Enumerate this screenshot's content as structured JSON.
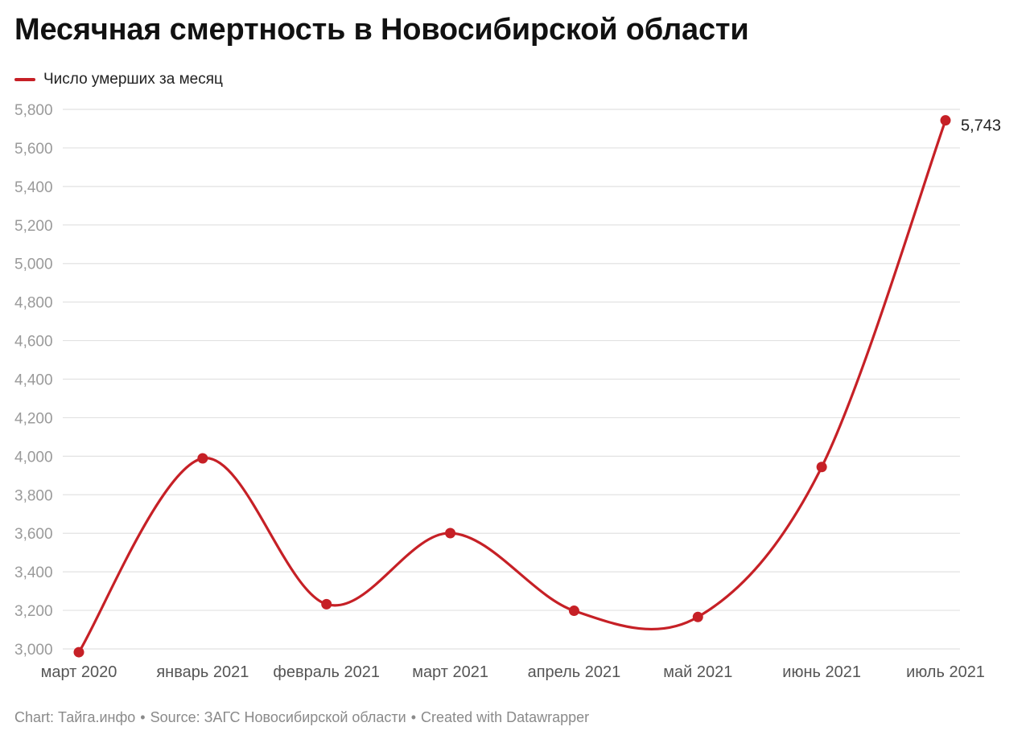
{
  "title": "Месячная смертность в Новосибирской области",
  "legend": {
    "label": "Число умерших за месяц",
    "color": "#c62026"
  },
  "footer": {
    "chart": "Chart: Тайга.инфо",
    "source": "Source: ЗАГС Новосибирской области",
    "created": "Created with Datawrapper",
    "separator": "•"
  },
  "chart_data": {
    "type": "line",
    "x": [
      "март 2020",
      "январь 2021",
      "февраль 2021",
      "март 2021",
      "апрель 2021",
      "май 2021",
      "июнь 2021",
      "июль 2021"
    ],
    "series": [
      {
        "name": "Число умерших за месяц",
        "values": [
          2983,
          3989,
          3232,
          3601,
          3198,
          3166,
          3944,
          5743
        ],
        "color": "#c62026"
      }
    ],
    "ylim": [
      3000,
      5800
    ],
    "yticks": [
      3000,
      3200,
      3400,
      3600,
      3800,
      4000,
      4200,
      4400,
      4600,
      4800,
      5000,
      5200,
      5400,
      5600,
      5800
    ],
    "ytick_labels": [
      "3,000",
      "3,200",
      "3,400",
      "3,600",
      "3,800",
      "4,000",
      "4,200",
      "4,400",
      "4,600",
      "4,800",
      "5,000",
      "5,200",
      "5,400",
      "5,600",
      "5,800"
    ],
    "annotations": [
      {
        "index": 7,
        "text": "5,743"
      }
    ],
    "grid": true,
    "legend_position": "top-left",
    "colors": {
      "grid": "#e2e2e2",
      "tick_label": "#9a9a9a",
      "x_label": "#555555",
      "annotation": "#222222"
    }
  }
}
